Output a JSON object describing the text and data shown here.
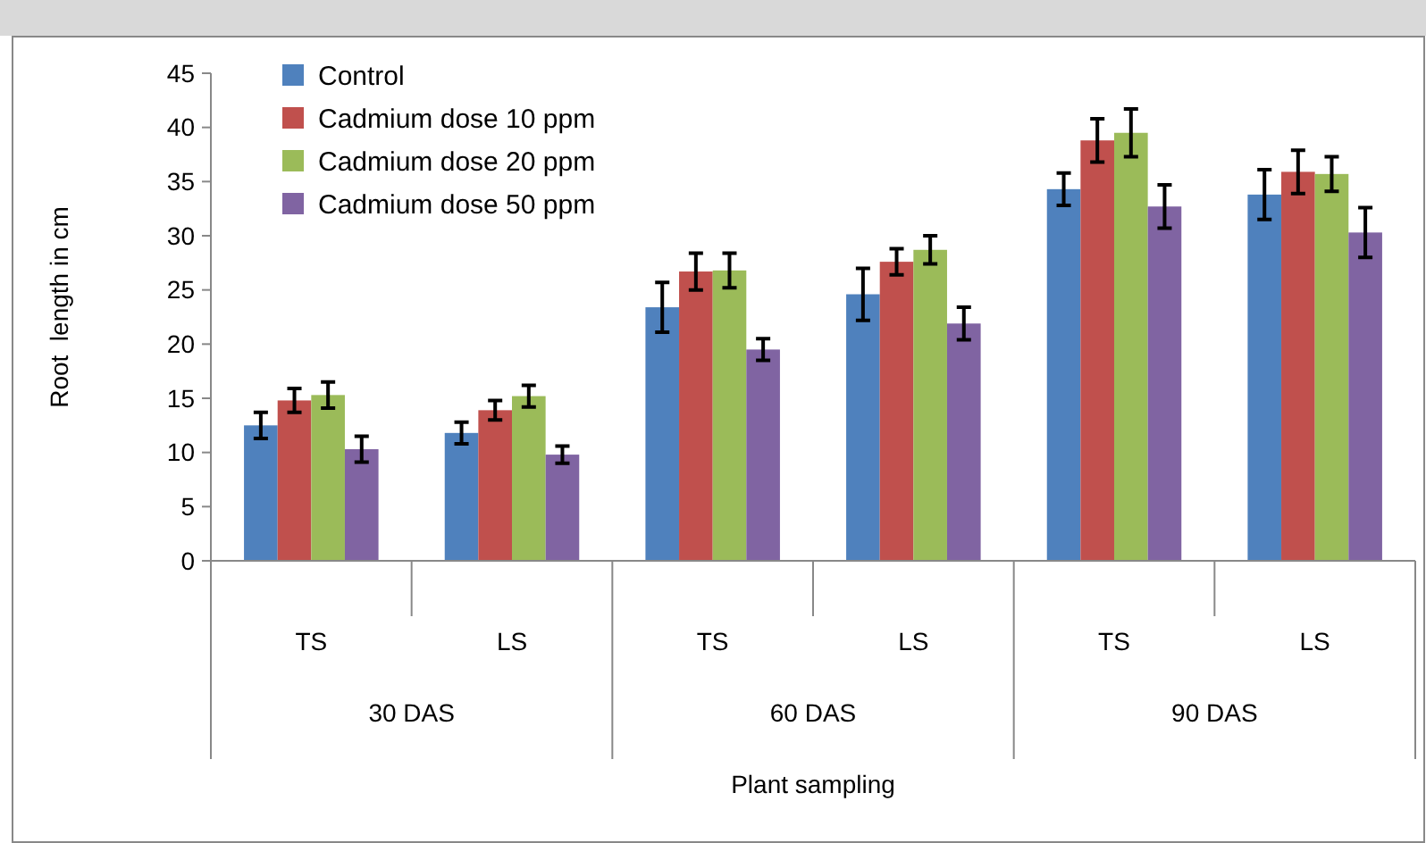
{
  "chart_data": {
    "type": "bar",
    "xlabel": "Plant sampling",
    "ylabel": "Root  length in cm",
    "categories": [
      "TS",
      "LS",
      "TS",
      "LS",
      "TS",
      "LS"
    ],
    "annotations": [
      "30 DAS",
      "60 DAS",
      "90 DAS"
    ],
    "series": [
      {
        "name": "Control",
        "color": "#4f81bd",
        "values": [
          12.5,
          11.8,
          23.4,
          24.6,
          34.3,
          33.8
        ],
        "errors": [
          1.2,
          1.0,
          2.3,
          2.4,
          1.5,
          2.3
        ]
      },
      {
        "name": "Cadmium dose 10 ppm",
        "color": "#c0504d",
        "values": [
          14.8,
          13.9,
          26.7,
          27.6,
          38.8,
          35.9
        ],
        "errors": [
          1.1,
          0.9,
          1.7,
          1.2,
          2.0,
          2.0
        ]
      },
      {
        "name": "Cadmium dose 20 ppm",
        "color": "#9bbb59",
        "values": [
          15.3,
          15.2,
          26.8,
          28.7,
          39.5,
          35.7
        ],
        "errors": [
          1.2,
          1.0,
          1.6,
          1.3,
          2.2,
          1.6
        ]
      },
      {
        "name": "Cadmium dose 50 ppm",
        "color": "#8064a2",
        "values": [
          10.3,
          9.8,
          19.5,
          21.9,
          32.7,
          30.3
        ],
        "errors": [
          1.2,
          0.8,
          1.0,
          1.5,
          2.0,
          2.3
        ]
      }
    ],
    "ylim": [
      0,
      45
    ],
    "yticks": [
      0,
      5,
      10,
      15,
      20,
      25,
      30,
      35,
      40,
      45
    ],
    "grid": false,
    "legend": "top left"
  }
}
